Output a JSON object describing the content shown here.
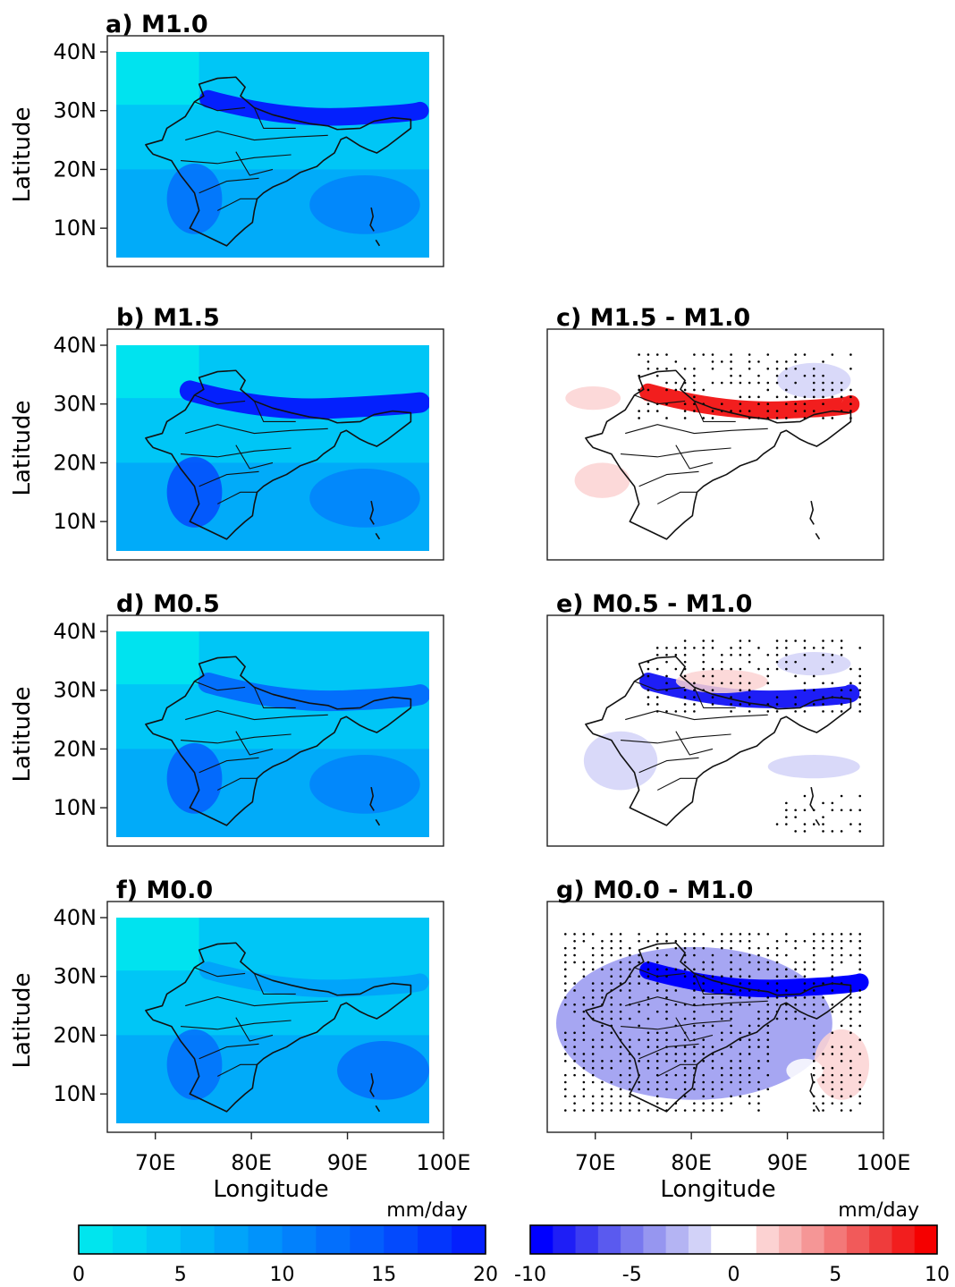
{
  "chart_data": [
    {
      "type": "heatmap",
      "panel": "a",
      "title": "a) M1.0",
      "xlabel": "",
      "ylabel": "Latitude",
      "yticks": [
        "10N",
        "20N",
        "30N",
        "40N"
      ],
      "xticks": [],
      "xlim": [
        65,
        99
      ],
      "ylim": [
        5,
        40
      ],
      "colorscale": "absolute",
      "features": [
        {
          "kind": "band",
          "value": 19,
          "lon": [
            75,
            98
          ],
          "lat": [
            28.5,
            31.5
          ]
        },
        {
          "kind": "blob",
          "value": 12,
          "lon": 73.5,
          "lat": 15,
          "rx": 3,
          "ry": 6
        },
        {
          "kind": "blob",
          "value": 10,
          "lon": 92,
          "lat": 14,
          "rx": 6,
          "ry": 5
        }
      ]
    },
    {
      "type": "heatmap",
      "panel": "b",
      "title": "b) M1.5",
      "xlabel": "",
      "ylabel": "Latitude",
      "yticks": [
        "10N",
        "20N",
        "30N",
        "40N"
      ],
      "xticks": [],
      "xlim": [
        65,
        99
      ],
      "ylim": [
        5,
        40
      ],
      "colorscale": "absolute",
      "features": [
        {
          "kind": "band",
          "value": 20,
          "lon": [
            73,
            98
          ],
          "lat": [
            28.5,
            32
          ]
        },
        {
          "kind": "blob",
          "value": 15,
          "lon": 73.5,
          "lat": 15,
          "rx": 3,
          "ry": 6
        },
        {
          "kind": "blob",
          "value": 11,
          "lon": 92,
          "lat": 14,
          "rx": 6,
          "ry": 5
        }
      ]
    },
    {
      "type": "heatmap",
      "panel": "c",
      "title": "c) M1.5 - M1.0",
      "xlabel": "",
      "ylabel": "",
      "yticks": [],
      "xticks": [],
      "xlim": [
        65,
        99
      ],
      "ylim": [
        5,
        40
      ],
      "colorscale": "difference",
      "features": [
        {
          "kind": "band",
          "value": 8,
          "lon": [
            75,
            97
          ],
          "lat": [
            28.5,
            31.5
          ]
        },
        {
          "kind": "blob",
          "value": 2,
          "lon": 69,
          "lat": 31,
          "rx": 3,
          "ry": 2
        },
        {
          "kind": "blob",
          "value": 2,
          "lon": 70,
          "lat": 17,
          "rx": 3,
          "ry": 3
        },
        {
          "kind": "blob",
          "value": -2,
          "lon": 93,
          "lat": 34,
          "rx": 4,
          "ry": 3
        },
        {
          "kind": "blob",
          "value": -1,
          "lon": 92,
          "lat": 15,
          "rx": 1,
          "ry": 1
        }
      ]
    },
    {
      "type": "heatmap",
      "panel": "d",
      "title": "d) M0.5",
      "xlabel": "",
      "ylabel": "Latitude",
      "yticks": [
        "10N",
        "20N",
        "30N",
        "40N"
      ],
      "xticks": [],
      "xlim": [
        65,
        99
      ],
      "ylim": [
        5,
        40
      ],
      "colorscale": "absolute",
      "features": [
        {
          "kind": "band",
          "value": 12,
          "lon": [
            75,
            98
          ],
          "lat": [
            27.5,
            31
          ]
        },
        {
          "kind": "blob",
          "value": 14,
          "lon": 73.5,
          "lat": 15,
          "rx": 3,
          "ry": 6
        },
        {
          "kind": "blob",
          "value": 10,
          "lon": 92,
          "lat": 14,
          "rx": 6,
          "ry": 5
        }
      ]
    },
    {
      "type": "heatmap",
      "panel": "e",
      "title": "e) M0.5 - M1.0",
      "xlabel": "",
      "ylabel": "",
      "yticks": [],
      "xticks": [],
      "xlim": [
        65,
        99
      ],
      "ylim": [
        5,
        40
      ],
      "colorscale": "difference",
      "features": [
        {
          "kind": "band",
          "value": -8,
          "lon": [
            75,
            97
          ],
          "lat": [
            28,
            31
          ]
        },
        {
          "kind": "blob",
          "value": 2,
          "lon": 83,
          "lat": 31.5,
          "rx": 5,
          "ry": 2
        },
        {
          "kind": "blob",
          "value": -2,
          "lon": 93,
          "lat": 34.5,
          "rx": 4,
          "ry": 2
        },
        {
          "kind": "blob",
          "value": -2,
          "lon": 72,
          "lat": 18,
          "rx": 4,
          "ry": 5
        },
        {
          "kind": "blob",
          "value": -2,
          "lon": 93,
          "lat": 17,
          "rx": 5,
          "ry": 2
        },
        {
          "kind": "blob",
          "value": -1,
          "lon": 84,
          "lat": 14,
          "rx": 3,
          "ry": 1
        }
      ]
    },
    {
      "type": "heatmap",
      "panel": "f",
      "title": "f) M0.0",
      "xlabel": "",
      "ylabel": "Latitude",
      "yticks": [
        "10N",
        "20N",
        "30N",
        "40N"
      ],
      "xticks": [
        "70E",
        "80E",
        "90E",
        "100E"
      ],
      "xlim": [
        65,
        99
      ],
      "ylim": [
        5,
        40
      ],
      "colorscale": "absolute",
      "features": [
        {
          "kind": "band",
          "value": 8,
          "lon": [
            75,
            98
          ],
          "lat": [
            27.5,
            30.5
          ]
        },
        {
          "kind": "blob",
          "value": 12,
          "lon": 73.5,
          "lat": 15,
          "rx": 3,
          "ry": 6
        },
        {
          "kind": "blob",
          "value": 13,
          "lon": 94,
          "lat": 14,
          "rx": 5,
          "ry": 5
        }
      ]
    },
    {
      "type": "heatmap",
      "panel": "g",
      "title": "g) M0.0 - M1.0",
      "xlabel": "",
      "ylabel": "",
      "yticks": [],
      "xticks": [
        "70E",
        "80E",
        "90E",
        "100E"
      ],
      "xlim": [
        65,
        99
      ],
      "ylim": [
        5,
        40
      ],
      "colorscale": "difference",
      "features": [
        {
          "kind": "blob",
          "value": -4,
          "lon": 80,
          "lat": 22,
          "rx": 15,
          "ry": 13
        },
        {
          "kind": "band",
          "value": -10,
          "lon": [
            75,
            98
          ],
          "lat": [
            27.5,
            30.5
          ]
        },
        {
          "kind": "blob",
          "value": 2,
          "lon": 96,
          "lat": 15,
          "rx": 3,
          "ry": 6
        },
        {
          "kind": "blob",
          "value": 0,
          "lon": 92,
          "lat": 14,
          "rx": 2,
          "ry": 2
        }
      ]
    }
  ],
  "shared_xlabel": "Longitude",
  "colorbars": [
    {
      "name": "absolute",
      "unit": "mm/day",
      "min": 0,
      "max": 20,
      "step": 1.667,
      "ticks": [
        "0",
        "5",
        "10",
        "15",
        "20"
      ],
      "colors": [
        "#00e5ee",
        "#00d6f3",
        "#00c6f6",
        "#00b6f8",
        "#01a4fa",
        "#0193fb",
        "#0281fc",
        "#036ffc",
        "#035efd",
        "#034afd",
        "#0336fd",
        "#0420fd"
      ]
    },
    {
      "name": "difference",
      "unit": "mm/day",
      "min": -10,
      "max": 10,
      "step": 1.111,
      "ticks": [
        "-10",
        "-5",
        "0",
        "5",
        "10"
      ],
      "colors": [
        "#0000ff",
        "#1e1ef6",
        "#3c3cf1",
        "#5a5aef",
        "#7878ef",
        "#9696f0",
        "#b4b4f3",
        "#d2d2f8",
        "#ffffff",
        "#ffffff",
        "#fcd2d2",
        "#f8b4b4",
        "#f59696",
        "#f37878",
        "#f15a5a",
        "#ef3c3c",
        "#f21e1e",
        "#f50000"
      ]
    }
  ],
  "colors": {
    "land_outline": "#111111",
    "significance_dots": "#000000"
  }
}
